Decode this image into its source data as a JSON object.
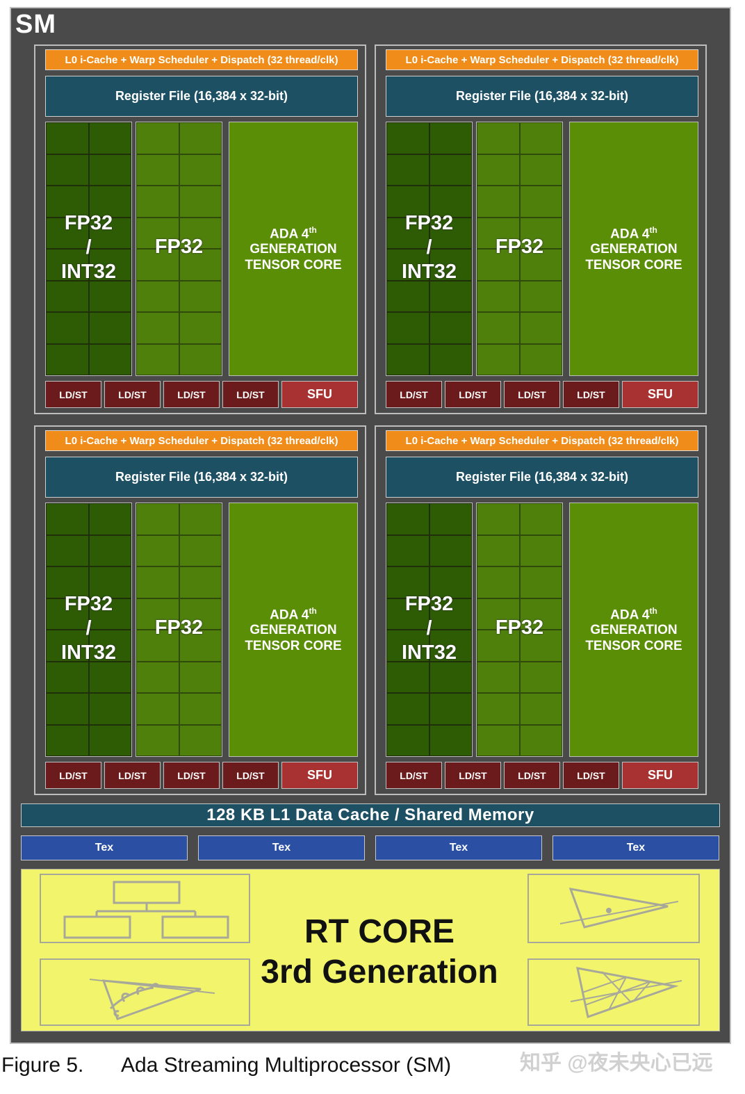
{
  "sm": {
    "title": "SM",
    "partitions": [
      {
        "scheduler": "L0 i-Cache + Warp Scheduler + Dispatch (32 thread/clk)",
        "register_file": "Register File (16,384 x 32-bit)"
      },
      {
        "scheduler": "L0 i-Cache + Warp Scheduler + Dispatch (32 thread/clk)",
        "register_file": "Register File (16,384 x 32-bit)"
      },
      {
        "scheduler": "L0 i-Cache + Warp Scheduler + Dispatch (32 thread/clk)",
        "register_file": "Register File (16,384 x 32-bit)"
      },
      {
        "scheduler": "L0 i-Cache + Warp Scheduler + Dispatch (32 thread/clk)",
        "register_file": "Register File (16,384 x 32-bit)"
      }
    ],
    "unit_labels": {
      "fp32_int32_line1": "FP32",
      "fp32_int32_line2": "/",
      "fp32_int32_line3": "INT32",
      "fp32": "FP32",
      "tensor_line1": "ADA 4",
      "tensor_sup": "th",
      "tensor_line2": "GENERATION",
      "tensor_line3": "TENSOR CORE",
      "ldst": "LD/ST",
      "sfu": "SFU"
    },
    "l1_cache": "128 KB L1 Data Cache / Shared Memory",
    "tex_units": [
      "Tex",
      "Tex",
      "Tex",
      "Tex"
    ],
    "rt_core": {
      "line1": "RT CORE",
      "line2": "3rd Generation"
    },
    "colors": {
      "frame": "#4a4a4a",
      "scheduler": "#f08c19",
      "register_file": "#1e5064",
      "fp32_int32": "#2e5c05",
      "fp32": "#4f800c",
      "tensor": "#5a8e06",
      "ldst": "#6b1b1b",
      "sfu": "#a83232",
      "tex": "#2a4fa3",
      "rt_core": "#f2f56b"
    }
  },
  "caption": {
    "figure": "Figure 5.",
    "text": "Ada Streaming Multiprocessor (SM)"
  },
  "watermark": "知乎 @夜未央心已远"
}
